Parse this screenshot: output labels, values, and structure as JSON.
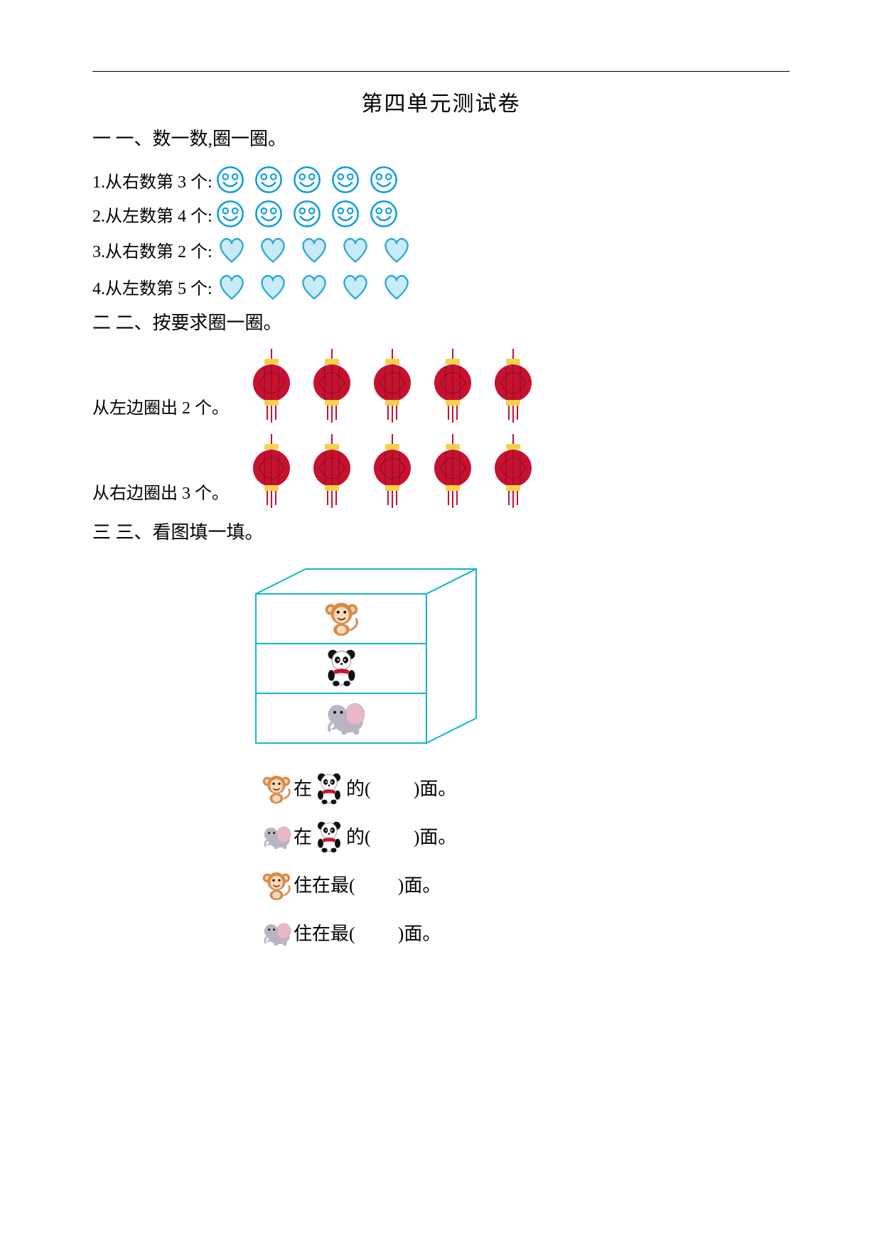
{
  "title": "第四单元测试卷",
  "colors": {
    "text": "#000000",
    "smile_stroke": "#0a9de0",
    "smile_fill": "#ffffff",
    "heart_stroke": "#2aa8d8",
    "heart_fill": "#c8ebf6",
    "lantern_body": "#c61230",
    "lantern_accent": "#f6d24a",
    "cabinet_stroke": "#16b5c9",
    "monkey_body": "#d98a4a",
    "monkey_face": "#f7d9b8",
    "panda_black": "#111111",
    "panda_white": "#ffffff",
    "panda_scarf": "#d01030",
    "elephant_body": "#b9b3c4",
    "elephant_ear": "#e9b7c6"
  },
  "section1": {
    "heading": "一 一、数一数,圈一圈。",
    "items": [
      {
        "label": "1.从右数第 3 个:",
        "shape": "smile",
        "count": 5
      },
      {
        "label": "2.从左数第 4 个:",
        "shape": "smile",
        "count": 5
      },
      {
        "label": "3.从右数第 2 个:",
        "shape": "heart",
        "count": 5
      },
      {
        "label": "4.从左数第 5 个:",
        "shape": "heart",
        "count": 5
      }
    ]
  },
  "section2": {
    "heading": "二 二、按要求圈一圈。",
    "rows": [
      {
        "label": "从左边圈出 2 个。",
        "count": 5
      },
      {
        "label": "从右边圈出 3 个。",
        "count": 5
      }
    ]
  },
  "section3": {
    "heading": "三 三、看图填一填。",
    "cabinet_order": [
      "monkey",
      "panda",
      "elephant"
    ],
    "lines": [
      {
        "left": "monkey",
        "mid_prefix": "在",
        "mid_icon": "panda",
        "mid_suffix": "的(",
        "tail": ")面。"
      },
      {
        "left": "elephant",
        "mid_prefix": "在",
        "mid_icon": "panda",
        "mid_suffix": "的(",
        "tail": ")面。"
      },
      {
        "left": "monkey",
        "mid_prefix": "住在最(",
        "mid_icon": null,
        "mid_suffix": "",
        "tail": ")面。"
      },
      {
        "left": "elephant",
        "mid_prefix": "住在最(",
        "mid_icon": null,
        "mid_suffix": "",
        "tail": ")面。"
      }
    ]
  }
}
